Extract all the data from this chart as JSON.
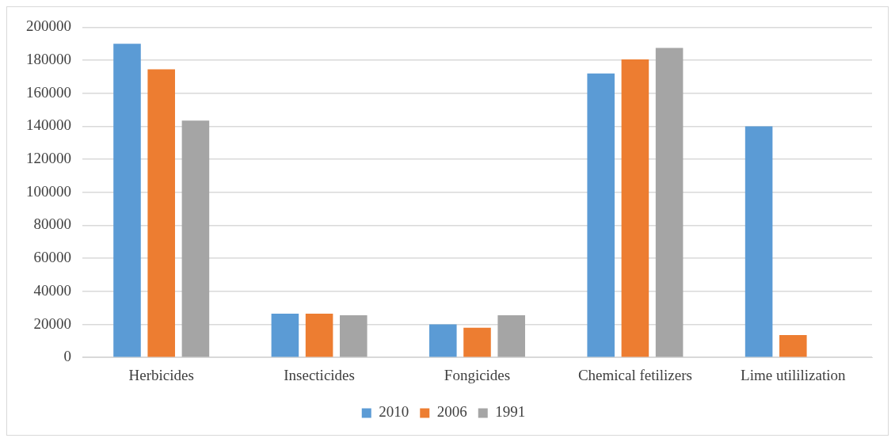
{
  "chart_data": {
    "type": "bar",
    "categories": [
      "Herbicides",
      "Insecticides",
      "Fongicides",
      "Chemical fetilizers",
      "Lime utililization"
    ],
    "series": [
      {
        "name": "2010",
        "color": "#5b9bd5",
        "values": [
          190000,
          26500,
          20000,
          172000,
          140000
        ]
      },
      {
        "name": "2006",
        "color": "#ed7d31",
        "values": [
          174500,
          26500,
          18000,
          180500,
          13500
        ]
      },
      {
        "name": "1991",
        "color": "#a5a5a5",
        "values": [
          143500,
          25500,
          25500,
          187500,
          null
        ]
      }
    ],
    "ylim": [
      0,
      200000
    ],
    "yticks": [
      0,
      20000,
      40000,
      60000,
      80000,
      100000,
      120000,
      140000,
      160000,
      180000,
      200000
    ],
    "grid": "y",
    "legend": "bottom"
  }
}
